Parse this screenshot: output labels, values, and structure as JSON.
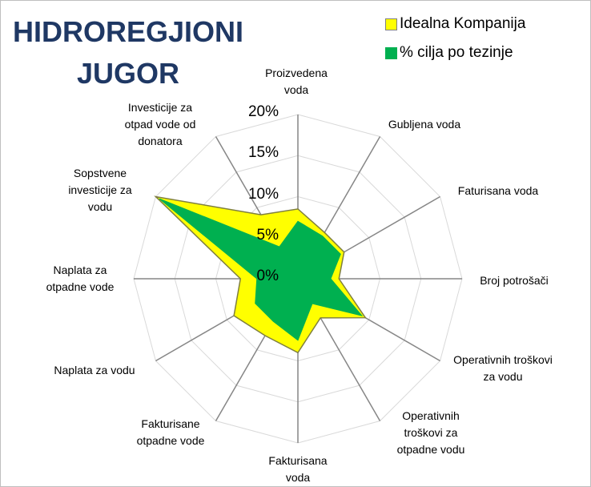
{
  "chart_data": {
    "type": "radar",
    "title": "HIDROREGJIONI JUGOR",
    "categories": [
      "Proizvedena voda",
      "Gubljena voda",
      "Faturisana voda",
      "Broj potrošači",
      "Operativnih troškovi za vodu",
      "Operativnih troškovi za otpadne vodu",
      "Fakturisana voda",
      "Fakturisane otpadne vode",
      "Naplata za vodu",
      "Naplata za otpadne vode",
      "Sopstvene investicije za vodu",
      "Investicije za otpad vode od donatora"
    ],
    "series": [
      {
        "name": "Idealna Kompanija",
        "color": "#ffff00",
        "values": [
          8.5,
          6.5,
          6.5,
          5,
          9.5,
          5.5,
          9,
          8,
          9,
          7,
          20,
          9
        ]
      },
      {
        "name": "% cilja po tezinje",
        "color": "#00b050",
        "values": [
          7,
          6,
          6,
          4,
          9,
          3.5,
          7.5,
          6,
          6,
          5,
          19.5,
          4.5
        ]
      }
    ],
    "ylim": [
      0,
      20
    ],
    "yticks": [
      {
        "value": 0,
        "label": "0%"
      },
      {
        "value": 5,
        "label": "5%"
      },
      {
        "value": 10,
        "label": "10%"
      },
      {
        "value": 15,
        "label": "15%"
      },
      {
        "value": 20,
        "label": "20%"
      }
    ],
    "grid": true,
    "legend": "top-right"
  }
}
